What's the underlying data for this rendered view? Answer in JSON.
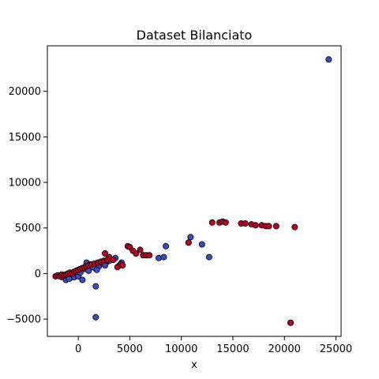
{
  "chart_data": {
    "type": "scatter",
    "title": "Dataset Bilanciato",
    "xlabel": "x",
    "ylabel": "",
    "xlim": [
      -3000,
      25500
    ],
    "ylim": [
      -6900,
      25000
    ],
    "xticks": [
      0,
      5000,
      10000,
      15000,
      20000,
      25000
    ],
    "yticks": [
      -5000,
      0,
      5000,
      10000,
      15000,
      20000
    ],
    "grid": false,
    "colors": {
      "class_0": "#3b4cc0",
      "class_1": "#b40426",
      "edge": "#000000"
    },
    "series": [
      {
        "color": "#3b4cc0",
        "x": [
          24300,
          1700,
          1700,
          10900,
          8500,
          12000,
          12700,
          7800,
          8300,
          10700,
          -1200,
          -800,
          -400,
          0,
          400,
          800,
          1200,
          1600,
          2000,
          2400,
          2800,
          3200,
          3600,
          4000,
          4200,
          -1600,
          -900,
          -300,
          200,
          600,
          1000,
          1400,
          1800,
          2600,
          3000,
          20600
        ],
        "y": [
          23500,
          -1400,
          -4800,
          4000,
          3000,
          3200,
          1800,
          1700,
          1800,
          3400,
          -700,
          -500,
          -400,
          -300,
          -700,
          1200,
          1000,
          600,
          800,
          1100,
          1300,
          1500,
          1700,
          900,
          1200,
          -400,
          -600,
          200,
          100,
          500,
          300,
          700,
          400,
          900,
          1400,
          -5400
        ]
      },
      {
        "color": "#b40426",
        "x": [
          20600,
          21000,
          13000,
          13700,
          14000,
          14300,
          15800,
          16200,
          16800,
          17200,
          17800,
          18200,
          18500,
          19200,
          10700,
          4800,
          5000,
          5300,
          5600,
          6000,
          6300,
          6600,
          6900,
          2600,
          3000,
          3400,
          3800,
          4100,
          4300,
          -2200,
          -2000,
          -1800,
          -1600,
          -1400,
          -1200,
          -1000,
          -800,
          -600,
          -400,
          -200,
          0,
          200,
          400,
          600,
          800,
          1000,
          1300,
          1600,
          1900,
          2200,
          2500,
          2800
        ],
        "y": [
          -5400,
          5100,
          5600,
          5600,
          5700,
          5600,
          5500,
          5500,
          5400,
          5300,
          5300,
          5200,
          5200,
          5200,
          3400,
          3000,
          2900,
          2500,
          2200,
          2600,
          2000,
          2000,
          2000,
          2200,
          1800,
          1500,
          700,
          1000,
          900,
          -300,
          -200,
          -300,
          -100,
          -200,
          -100,
          0,
          100,
          0,
          200,
          300,
          400,
          500,
          600,
          700,
          800,
          900,
          1000,
          1100,
          1200,
          1300,
          1400,
          1500
        ]
      }
    ]
  }
}
